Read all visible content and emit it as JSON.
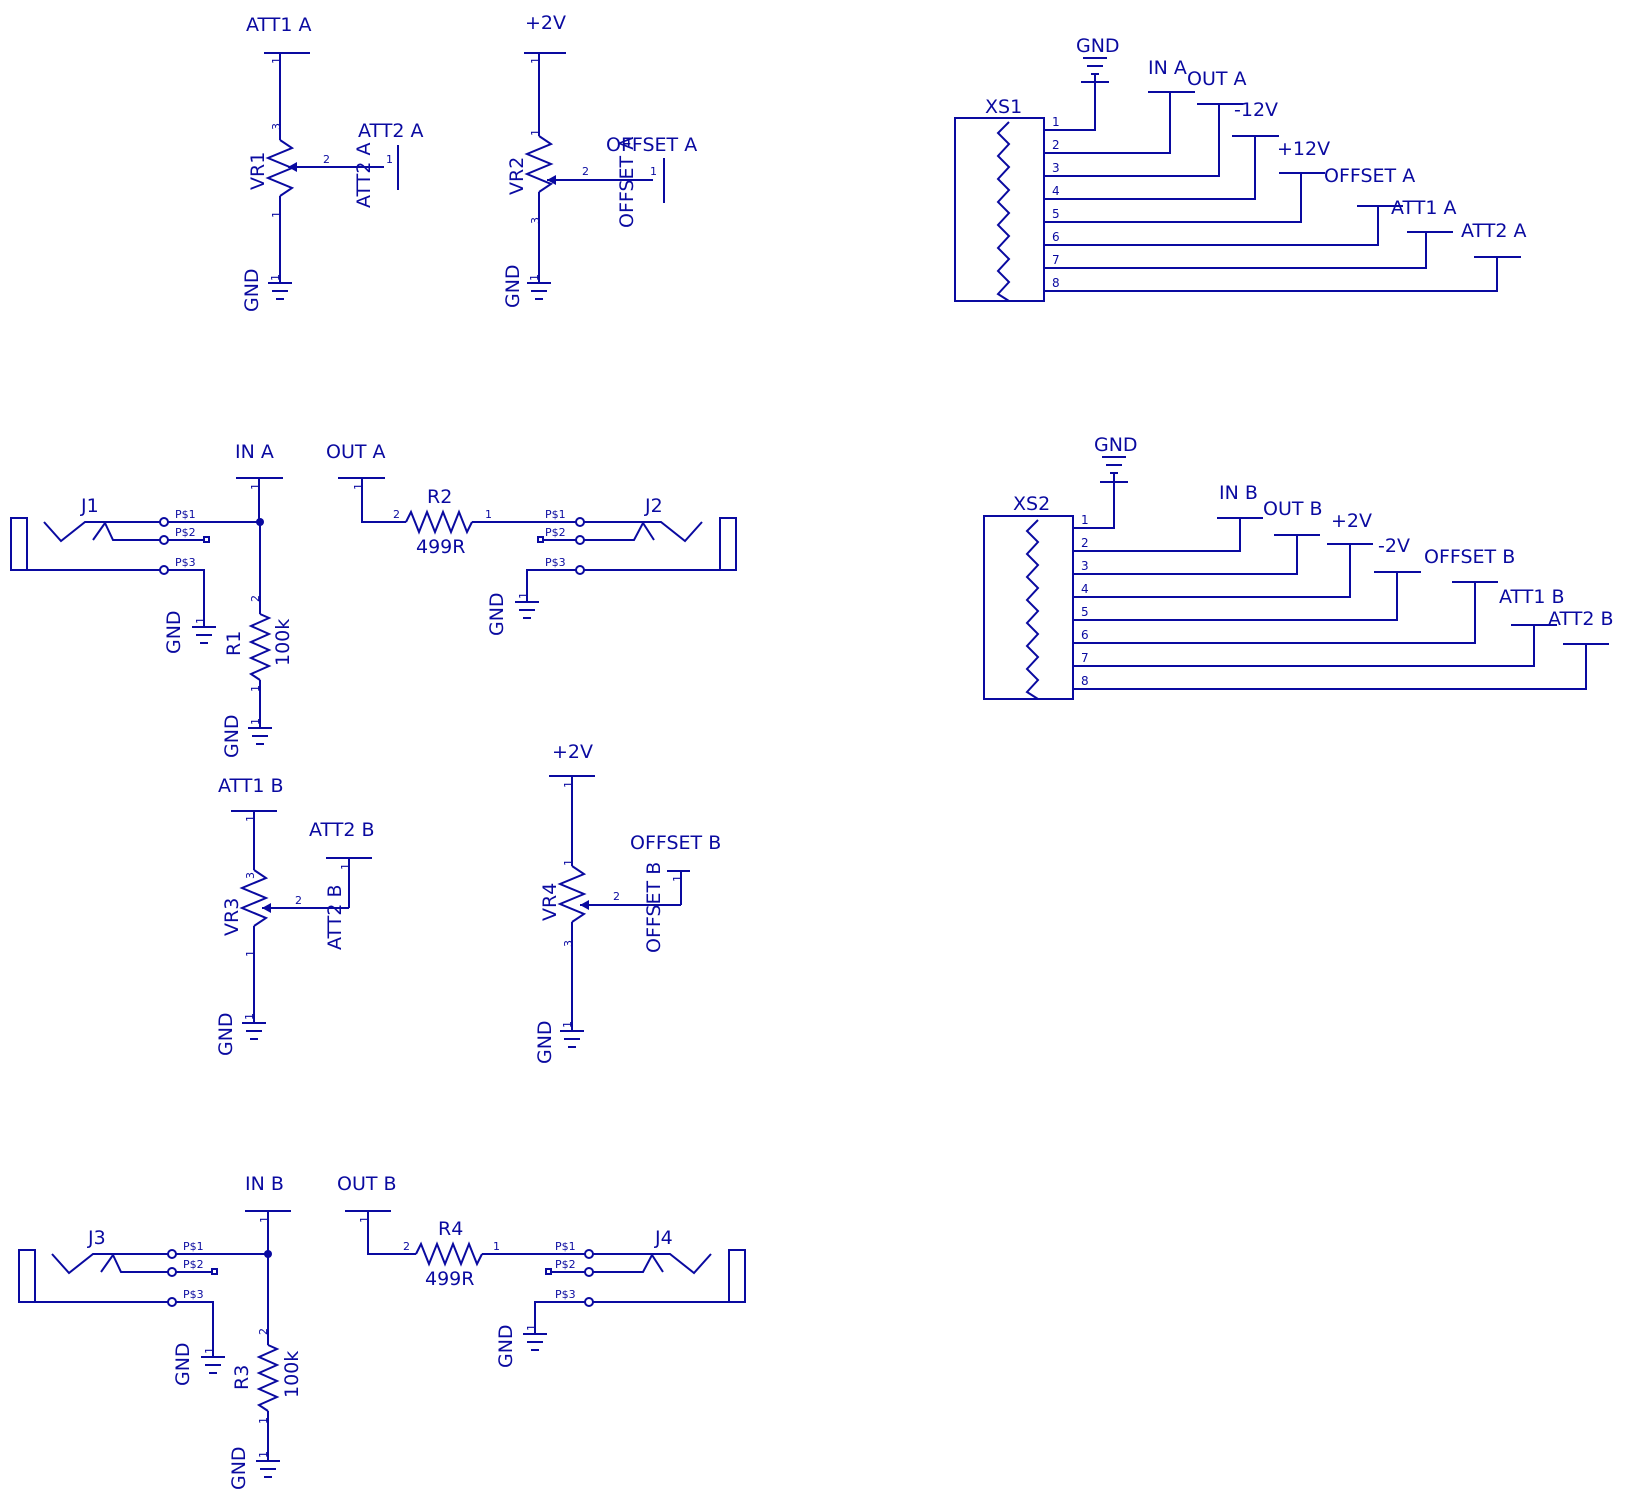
{
  "colors": {
    "ink": "#0a0aa0",
    "background": "#ffffff"
  },
  "net": {
    "att1_a": "ATT1 A",
    "att2_a": "ATT2 A",
    "offset_a": "OFFSET A",
    "att1_b": "ATT1 B",
    "att2_b": "ATT2 B",
    "offset_b": "OFFSET B",
    "in_a": "IN A",
    "out_a": "OUT A",
    "in_b": "IN B",
    "out_b": "OUT B",
    "gnd": "GND",
    "p2v": "+2V",
    "m2v": "-2V",
    "p12v": "+12V",
    "m12v": "-12V"
  },
  "ref": {
    "vr1": "VR1",
    "vr2": "VR2",
    "vr3": "VR3",
    "vr4": "VR4",
    "r1": "R1",
    "r2": "R2",
    "r3": "R3",
    "r4": "R4",
    "j1": "J1",
    "j2": "J2",
    "j3": "J3",
    "j4": "J4",
    "xs1": "XS1",
    "xs2": "XS2"
  },
  "val": {
    "r1": "100k",
    "r2": "499R",
    "r3": "100k",
    "r4": "499R"
  },
  "pins": {
    "p1": "1",
    "p2": "2",
    "p3": "3",
    "p4": "4",
    "p5": "5",
    "p6": "6",
    "p7": "7",
    "p8": "8",
    "ps1": "P$1",
    "ps2": "P$2",
    "ps3": "P$3"
  }
}
